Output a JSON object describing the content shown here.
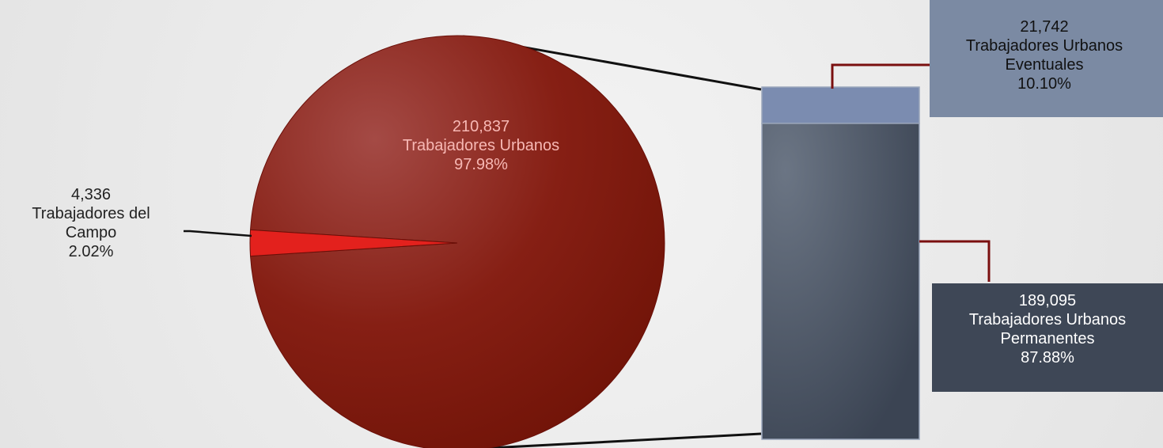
{
  "chart_data": {
    "type": "bar-of-pie",
    "categories": [
      "Trabajadores Urbanos",
      "Trabajadores del Campo"
    ],
    "values": [
      210837,
      4336
    ],
    "value_labels": [
      "210,837",
      "4,336"
    ],
    "percents": [
      97.98,
      2.02
    ],
    "percent_labels": [
      "97.98%",
      "2.02%"
    ],
    "colors": [
      "#7d1d12",
      "#e3211d"
    ],
    "breakdown": {
      "categories": [
        "Trabajadores Urbanos Eventuales",
        "Trabajadores Urbanos Permanentes"
      ],
      "values": [
        21742,
        189095
      ],
      "value_labels": [
        "21,742",
        "189,095"
      ],
      "percents": [
        10.1,
        87.88
      ],
      "percent_labels": [
        "10.10%",
        "87.88%"
      ],
      "colors": [
        "#7b8cb0",
        "#414b5b"
      ]
    }
  }
}
